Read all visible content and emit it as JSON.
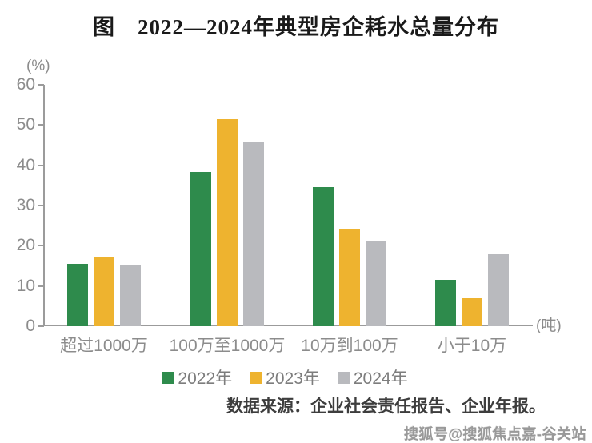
{
  "title": "图　2022—2024年典型房企耗水总量分布",
  "chart_data": {
    "type": "bar",
    "categories": [
      "超过1000万",
      "100万至1000万",
      "10万到100万",
      "小于10万"
    ],
    "series": [
      {
        "name": "2022年",
        "color": "#2e8b4c",
        "values": [
          15.5,
          38.3,
          34.5,
          11.6
        ]
      },
      {
        "name": "2023年",
        "color": "#eeb32f",
        "values": [
          17.2,
          51.5,
          24.1,
          7.0
        ]
      },
      {
        "name": "2024年",
        "color": "#b9babe",
        "values": [
          15.0,
          45.9,
          21.0,
          17.9
        ]
      }
    ],
    "title": "图　2022—2024年典型房企耗水总量分布",
    "xlabel": "",
    "ylabel": "",
    "ylabel_unit": "(%)",
    "xlabel_unit": "(吨)",
    "ylim": [
      0,
      60
    ],
    "yticks": [
      0,
      10,
      20,
      30,
      40,
      50,
      60
    ],
    "grid": false,
    "legend_position": "bottom"
  },
  "source_note": "数据来源：企业社会责任报告、企业年报。",
  "watermark": "搜狐号@搜狐焦点嘉-谷关站",
  "colors": {
    "axis": "#9b9b9b",
    "axis_text": "#8c8c8c",
    "legend_text": "#7d7d7d",
    "title_text": "#1a1a1a",
    "source_text": "#3d3d3d",
    "watermark_text": "#8f8f8f"
  }
}
